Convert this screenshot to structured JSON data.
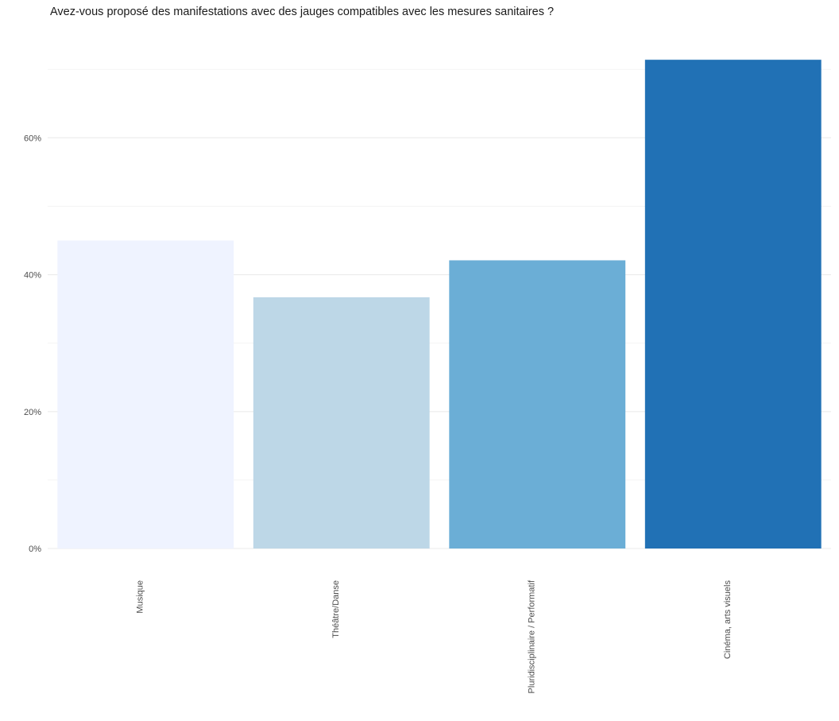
{
  "chart_data": {
    "type": "bar",
    "title": "Avez-vous proposé des manifestations avec des jauges compatibles avec les mesures sanitaires ?",
    "xlabel": "",
    "ylabel": "",
    "categories": [
      "Musique",
      "Théâtre/Danse",
      "Pluridisciplinaire / Performatif",
      "Cinéma, arts visuels"
    ],
    "values": [
      45,
      36.7,
      42.1,
      71.4
    ],
    "colors": [
      "#eff3ff",
      "#bdd7e7",
      "#6baed6",
      "#2171b5"
    ],
    "y_ticks": [
      0,
      20,
      40,
      60
    ],
    "y_tick_labels": [
      "0%",
      "20%",
      "40%",
      "60%"
    ],
    "ylim": [
      0,
      72
    ],
    "grid": true,
    "legend": "none"
  }
}
